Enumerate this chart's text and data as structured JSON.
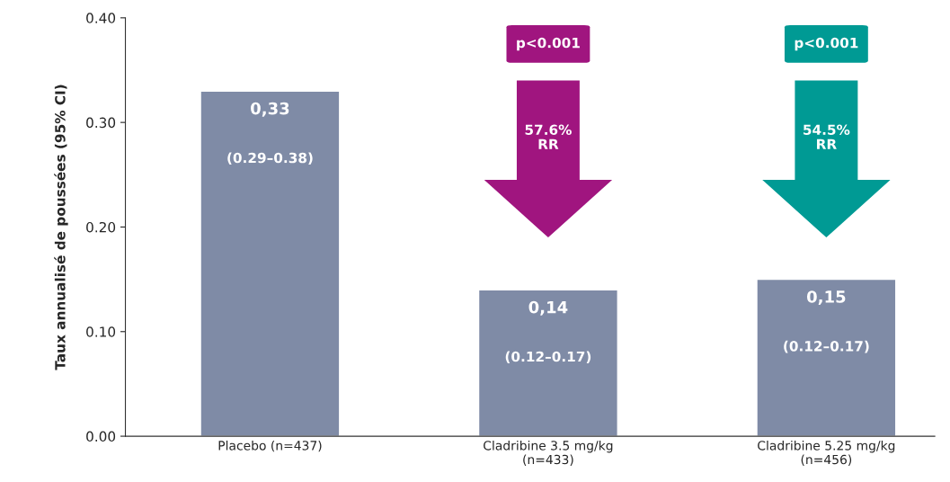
{
  "chart_data": {
    "type": "bar",
    "ylabel": "Taux annualisé de poussées (95% CI)",
    "categories": [
      "Placebo (n=437)",
      "Cladribine 3.5 mg/kg\n(n=433)",
      "Cladribine 5.25 mg/kg\n(n=456)"
    ],
    "values": [
      0.33,
      0.14,
      0.15
    ],
    "color": "#7f8ba6",
    "value_labels": [
      "0,33",
      "0,14",
      "0,15"
    ],
    "ylim": [
      0,
      0.4
    ],
    "yticks": [
      {
        "value": 0,
        "label": "0.00"
      },
      {
        "value": 0.1,
        "label": "0.10"
      },
      {
        "value": 0.2,
        "label": "0.20"
      },
      {
        "value": 0.3,
        "label": "0.30"
      },
      {
        "value": 0.4,
        "label": "0.40"
      }
    ],
    "grid": false,
    "legend": false,
    "annotations": [
      "(0.29–0.38)",
      "(0.12–0.17)",
      "(0.12–0.17)",
      "p<0.001",
      "57.6%\nRR",
      "p<0.001",
      "54.5%\nRR"
    ]
  }
}
